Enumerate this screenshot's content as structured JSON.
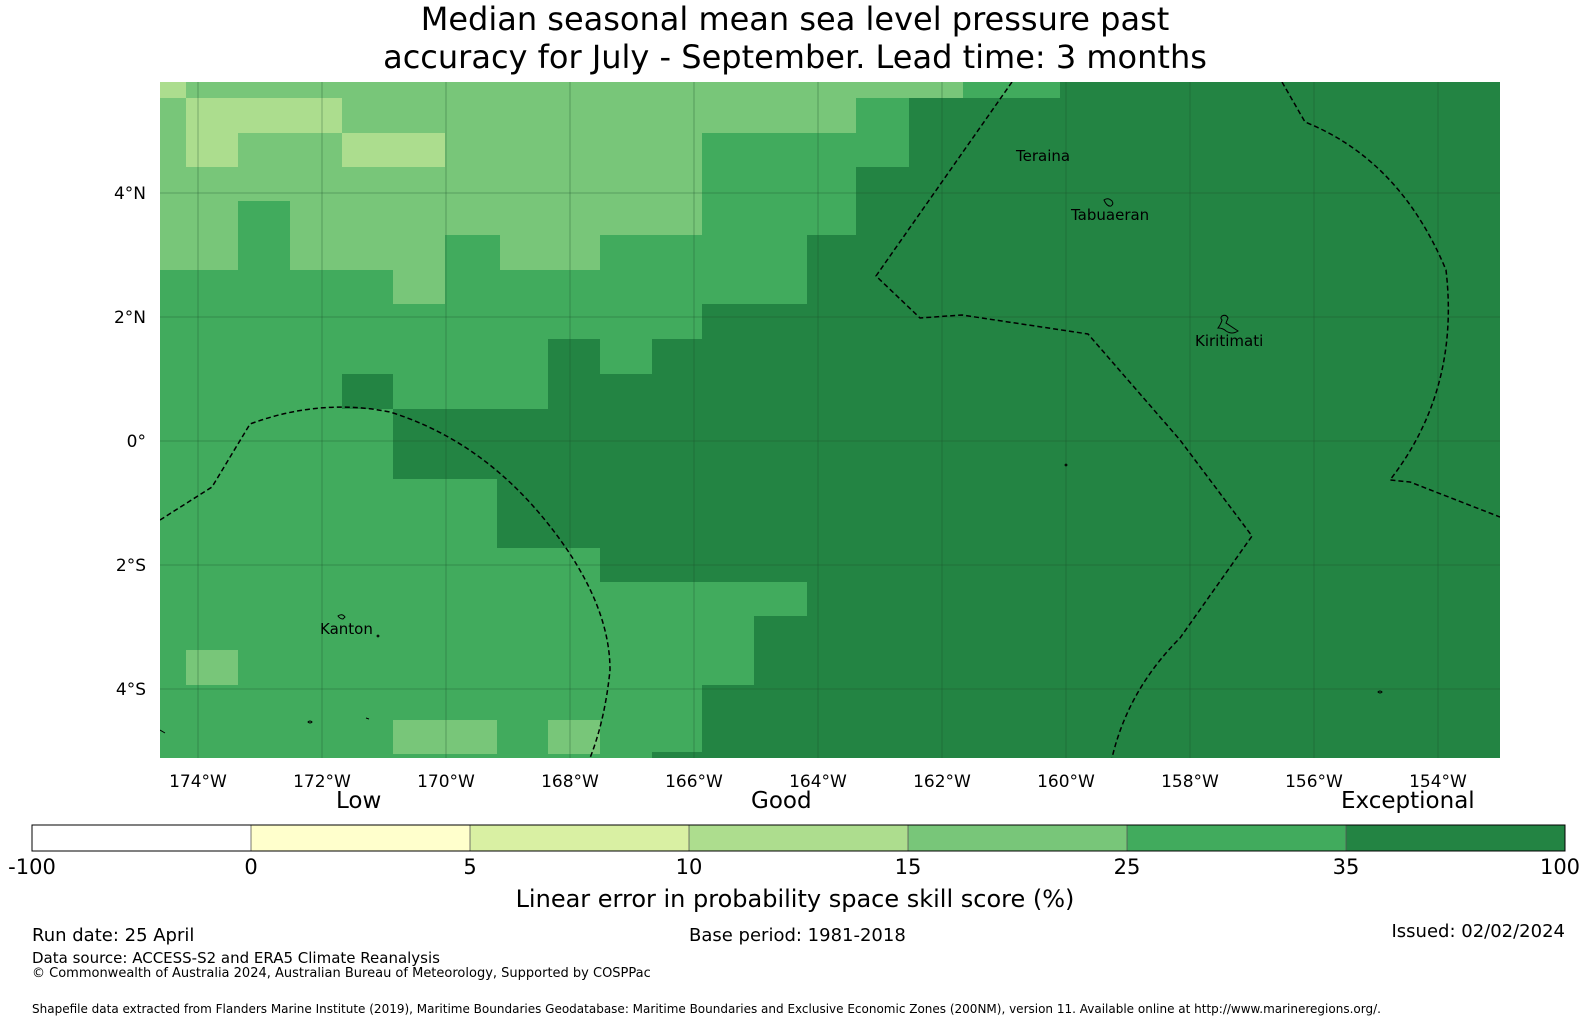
{
  "title": {
    "line1": "Median seasonal mean sea level pressure past",
    "line2": "accuracy for July - September. Lead time: 3 months"
  },
  "map": {
    "lon_ticks": [
      "174°W",
      "172°W",
      "170°W",
      "168°W",
      "166°W",
      "164°W",
      "162°W",
      "160°W",
      "158°W",
      "156°W",
      "154°W"
    ],
    "lat_ticks": [
      "4°N",
      "2°N",
      "0°",
      "2°S",
      "4°S"
    ],
    "places": {
      "teraina": "Teraina",
      "tabuaeran": "Tabuaeran",
      "kiritimati": "Kiritimati",
      "kanton": "Kanton"
    },
    "category_colors": {
      "c10_15": "#acdd8e",
      "c15_25": "#78c679",
      "c25_35": "#41ab5d",
      "c35_100": "#238443"
    }
  },
  "colorbar": {
    "words": {
      "low": "Low",
      "good": "Good",
      "exceptional": "Exceptional"
    },
    "tick_labels": [
      "-100",
      "0",
      "5",
      "10",
      "15",
      "25",
      "35",
      "100"
    ],
    "colors": [
      "#ffffff",
      "#ffffcc",
      "#d9f0a3",
      "#addd8e",
      "#78c679",
      "#41ab5d",
      "#238443"
    ],
    "title": "Linear error in probability space skill score (%)"
  },
  "footer": {
    "run_date": "Run date: 25 April",
    "base_period": "Base period: 1981-2018",
    "issued": "Issued: 02/02/2024",
    "data_source": "Data source: ACCESS-S2 and ERA5 Climate Reanalysis",
    "copyright": "© Commonwealth of Australia 2024, Australian Bureau of Meteorology, Supported by COSPPac",
    "shapefile": "Shapefile data extracted from Flanders Marine Institute (2019), Maritime Boundaries Geodatabase: Maritime Boundaries and Exclusive Economic Zones (200NM), version 11. Available online at http://www.marineregions.org/."
  }
}
